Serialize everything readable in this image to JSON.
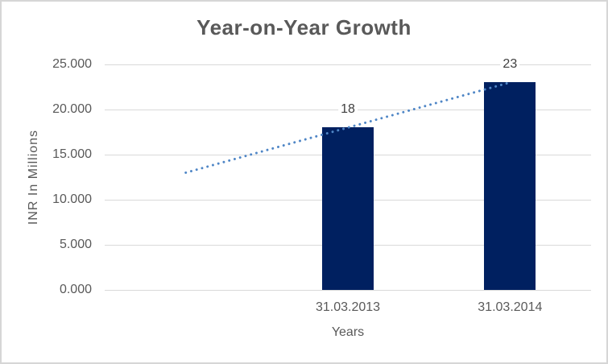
{
  "chart_data": {
    "type": "bar",
    "title": "Year-on-Year Growth",
    "xlabel": "Years",
    "ylabel": "INR In Millions",
    "categories": [
      "",
      "31.03.2013",
      "31.03.2014"
    ],
    "values": [
      null,
      18,
      23
    ],
    "data_labels": [
      "18",
      "23"
    ],
    "ylim": [
      0,
      25
    ],
    "yticks": [
      {
        "value": 25,
        "label": "25.000"
      },
      {
        "value": 20,
        "label": "20.000"
      },
      {
        "value": 15,
        "label": "15.000"
      },
      {
        "value": 10,
        "label": "10.000"
      },
      {
        "value": 5,
        "label": "5.000"
      },
      {
        "value": 0,
        "label": "0.000"
      }
    ],
    "grid": true,
    "legend": "none",
    "trendline": {
      "style": "dotted",
      "start": {
        "slot": 0,
        "value": 13
      },
      "end": {
        "slot": 2,
        "value": 23
      }
    },
    "colors": {
      "bar": "#002060",
      "trendline": "#4f86c6",
      "gridline": "#d9d9d9",
      "axis_text": "#595959",
      "data_label_text": "#3f3f3f"
    }
  }
}
